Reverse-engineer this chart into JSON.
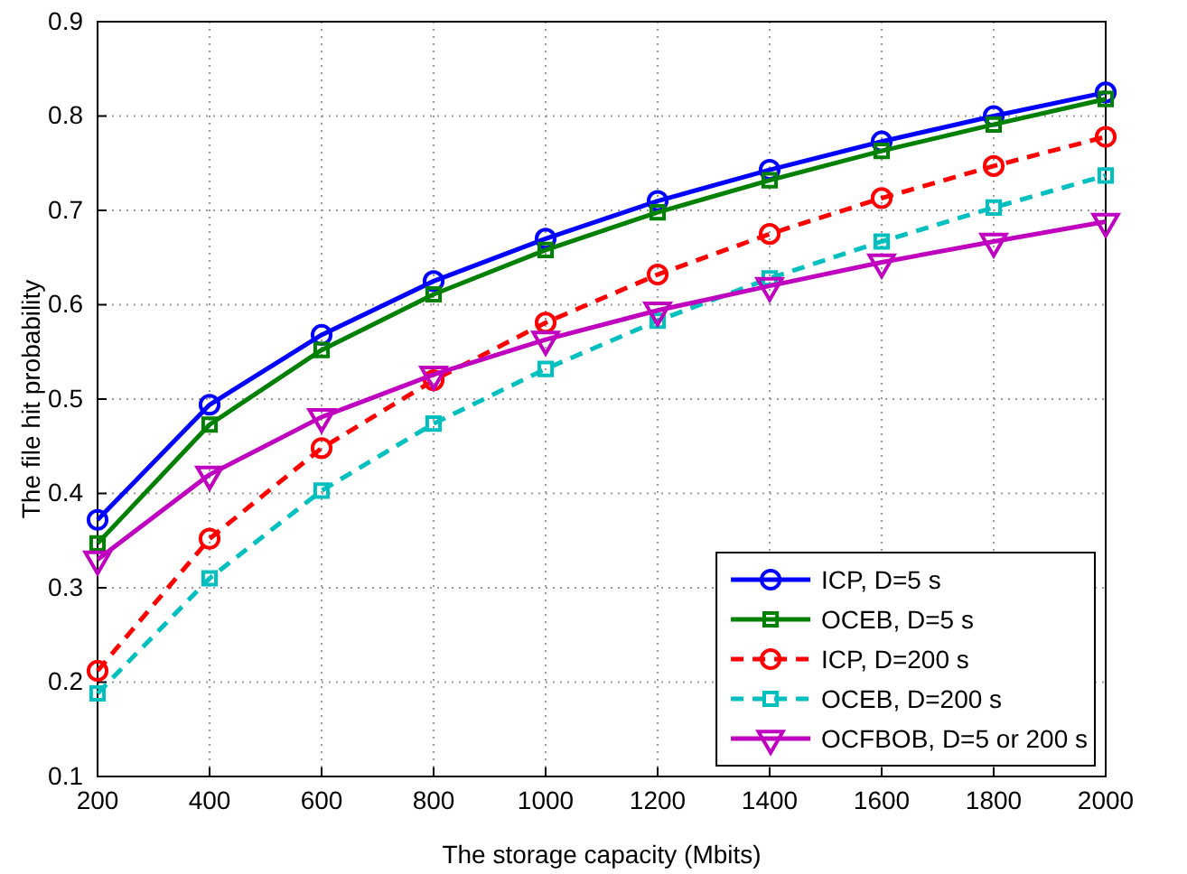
{
  "chart_data": {
    "type": "line",
    "xlabel": "The storage capacity (Mbits)",
    "ylabel": "The file hit probability",
    "x": [
      200,
      400,
      600,
      800,
      1000,
      1200,
      1400,
      1600,
      1800,
      2000
    ],
    "xlim": [
      200,
      2000
    ],
    "xticks": [
      200,
      400,
      600,
      800,
      1000,
      1200,
      1400,
      1600,
      1800,
      2000
    ],
    "ylim": [
      0.1,
      0.9
    ],
    "yticks": [
      0.1,
      0.2,
      0.3,
      0.4,
      0.5,
      0.6,
      0.7,
      0.8,
      0.9
    ],
    "grid": true,
    "legend": "bottom right",
    "series": [
      {
        "name": "ICP, D=5 s",
        "color": "#0000ff",
        "marker": "circle",
        "line_style": "solid",
        "values": [
          0.372,
          0.494,
          0.568,
          0.625,
          0.67,
          0.71,
          0.743,
          0.773,
          0.8,
          0.825
        ]
      },
      {
        "name": "OCEB, D=5 s",
        "color": "#008000",
        "marker": "square",
        "line_style": "solid",
        "values": [
          0.347,
          0.473,
          0.552,
          0.611,
          0.658,
          0.698,
          0.732,
          0.763,
          0.791,
          0.818
        ]
      },
      {
        "name": "ICP, D=200 s",
        "color": "#ff0000",
        "marker": "circle",
        "line_style": "dashed",
        "values": [
          0.212,
          0.352,
          0.448,
          0.52,
          0.581,
          0.632,
          0.675,
          0.713,
          0.747,
          0.778
        ]
      },
      {
        "name": "OCEB, D=200 s",
        "color": "#00bfbf",
        "marker": "square",
        "line_style": "dashed",
        "values": [
          0.188,
          0.31,
          0.403,
          0.474,
          0.532,
          0.583,
          0.628,
          0.667,
          0.703,
          0.737
        ]
      },
      {
        "name": "OCFBOB, D=5 or 200 s",
        "color": "#bf00bf",
        "marker": "triangle",
        "line_style": "solid",
        "values": [
          0.33,
          0.42,
          0.481,
          0.526,
          0.563,
          0.594,
          0.62,
          0.645,
          0.667,
          0.688
        ]
      }
    ]
  }
}
